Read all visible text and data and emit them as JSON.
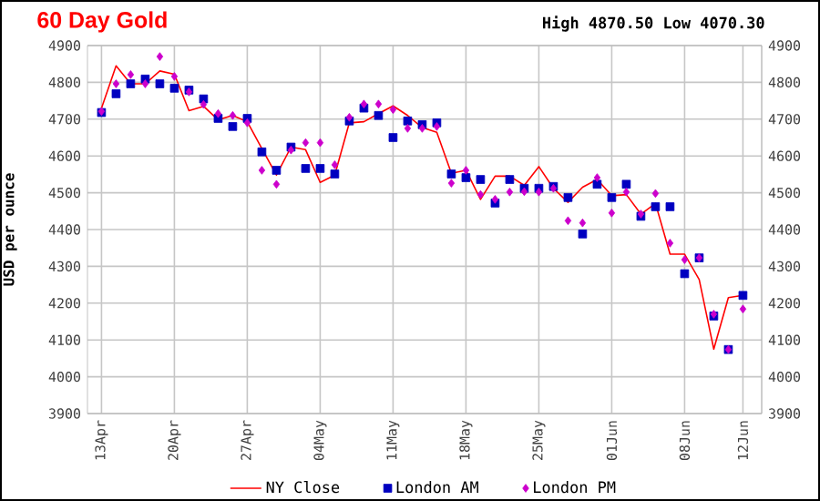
{
  "chart_data": {
    "type": "line",
    "title": "60 Day Gold",
    "subtitle": "High 4870.50 Low 4070.30",
    "ylabel": "USD per ounce",
    "categories": [
      "13Apr",
      null,
      null,
      null,
      null,
      "20Apr",
      null,
      null,
      null,
      null,
      "27Apr",
      null,
      null,
      null,
      null,
      "04May",
      null,
      null,
      null,
      null,
      "11May",
      null,
      null,
      null,
      null,
      "18May",
      null,
      null,
      null,
      null,
      "25May",
      null,
      null,
      null,
      null,
      "01Jun",
      null,
      null,
      null,
      null,
      "08Jun",
      null,
      null,
      null,
      "12Jun"
    ],
    "ylim": [
      3900,
      4900
    ],
    "yticks": [
      3900,
      4000,
      4100,
      4200,
      4300,
      4400,
      4500,
      4600,
      4700,
      4800,
      4900
    ],
    "y2lim": [
      3900,
      4900
    ],
    "y2ticks": [
      3900,
      4000,
      4100,
      4200,
      4300,
      4400,
      4500,
      4600,
      4700,
      4800,
      4900
    ],
    "grid": true,
    "legend": "bottom",
    "series": [
      {
        "name": "NY Close",
        "marker": "none",
        "color": "#ff0000",
        "values": [
          4730,
          4845,
          4796,
          4796,
          4831,
          4822,
          4723,
          4735,
          4698,
          4710,
          4693,
          4620,
          4548,
          4624,
          4617,
          4528,
          4548,
          4690,
          4693,
          4715,
          4736,
          4710,
          4677,
          4664,
          4553,
          4561,
          4482,
          4545,
          4545,
          4520,
          4571,
          4512,
          4474,
          4515,
          4536,
          4492,
          4495,
          4442,
          4471,
          4333,
          4333,
          4264,
          4075,
          4215,
          4221
        ]
      },
      {
        "name": "London AM",
        "type": "scatter",
        "marker": "square",
        "color": "#0000c0",
        "values": [
          4718,
          4769,
          4796,
          4809,
          4796,
          4784,
          4779,
          4755,
          4702,
          4680,
          4702,
          4611,
          4561,
          4624,
          4566,
          4566,
          4551,
          4695,
          4730,
          4710,
          4650,
          4695,
          4685,
          4690,
          4551,
          4541,
          4536,
          4472,
          4536,
          4512,
          4512,
          4517,
          4487,
          4388,
          4523,
          4487,
          4523,
          4436,
          4462,
          4462,
          4280,
          4323,
          4165,
          4074,
          4221
        ]
      },
      {
        "name": "London PM",
        "type": "scatter",
        "marker": "diamond",
        "color": "#cc00cc",
        "values": [
          4721,
          4796,
          4821,
          4796,
          4870,
          4816,
          4774,
          4740,
          4715,
          4710,
          4690,
          4561,
          4523,
          4616,
          4636,
          4636,
          4576,
          4705,
          4741,
          4741,
          4726,
          4675,
          4675,
          4680,
          4526,
          4561,
          4495,
          4482,
          4502,
          4503,
          4502,
          4512,
          4424,
          4418,
          4541,
          4445,
          4502,
          4442,
          4498,
          4363,
          4318,
          4323,
          4170,
          4074,
          4184
        ]
      }
    ]
  }
}
